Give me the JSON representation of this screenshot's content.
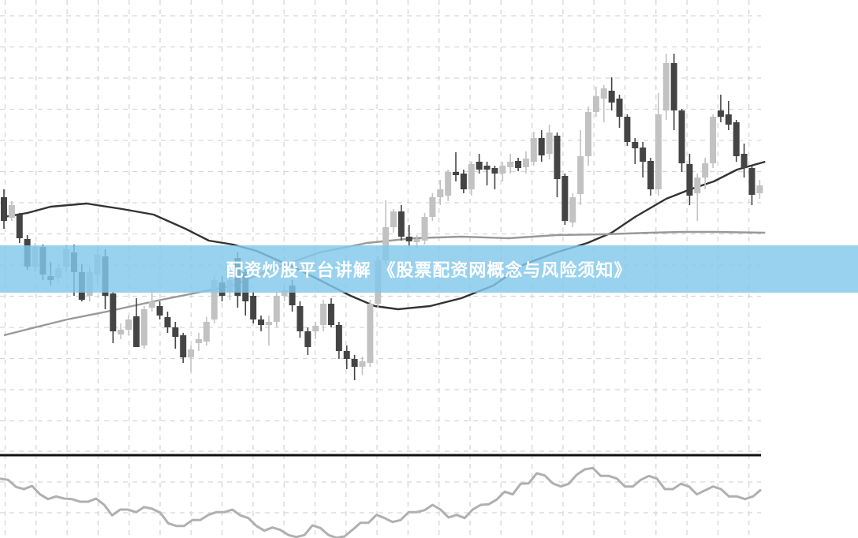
{
  "banner": {
    "title": "配资炒股平台讲解 《股票配资网概念与风险须知》",
    "background": "#82c8eb"
  },
  "colors": {
    "bear": "#444444",
    "bull": "#c2c2c2",
    "ma_fast": "#333333",
    "ma_slow": "#999999",
    "oscillator": "#b0b0b0",
    "grid": "#d6d6d6"
  },
  "chart_data": [
    {
      "type": "candlestick",
      "title": "",
      "grid": true,
      "legend": "none",
      "ohlc_fields": [
        "open",
        "high",
        "low",
        "close"
      ],
      "candles": [
        [
          450,
          460,
          410,
          420
        ],
        [
          424,
          445,
          420,
          440
        ],
        [
          428,
          430,
          392,
          398
        ],
        [
          397,
          402,
          358,
          362
        ],
        [
          362,
          392,
          355,
          387
        ],
        [
          387,
          390,
          345,
          352
        ],
        [
          350,
          368,
          338,
          345
        ],
        [
          348,
          365,
          342,
          360
        ],
        [
          362,
          390,
          355,
          384
        ],
        [
          380,
          390,
          325,
          355
        ],
        [
          355,
          365,
          318,
          320
        ],
        [
          325,
          362,
          318,
          355
        ],
        [
          352,
          385,
          340,
          377
        ],
        [
          375,
          384,
          308,
          325
        ],
        [
          328,
          330,
          265,
          280
        ],
        [
          276,
          290,
          270,
          282
        ],
        [
          282,
          300,
          275,
          295
        ],
        [
          299,
          322,
          260,
          260
        ],
        [
          262,
          312,
          258,
          308
        ],
        [
          310,
          330,
          305,
          318
        ],
        [
          312,
          318,
          295,
          300
        ],
        [
          298,
          305,
          278,
          285
        ],
        [
          285,
          292,
          258,
          273
        ],
        [
          275,
          278,
          240,
          247
        ],
        [
          247,
          262,
          228,
          257
        ],
        [
          265,
          278,
          255,
          270
        ],
        [
          267,
          298,
          262,
          292
        ],
        [
          295,
          350,
          290,
          345
        ],
        [
          342,
          350,
          318,
          325
        ],
        [
          330,
          352,
          320,
          345
        ],
        [
          373,
          380,
          310,
          325
        ],
        [
          355,
          362,
          300,
          318
        ],
        [
          325,
          330,
          290,
          295
        ],
        [
          295,
          300,
          280,
          288
        ],
        [
          288,
          300,
          262,
          292
        ],
        [
          292,
          330,
          285,
          325
        ],
        [
          325,
          340,
          318,
          332
        ],
        [
          338,
          345,
          305,
          313
        ],
        [
          312,
          318,
          272,
          280
        ],
        [
          280,
          285,
          250,
          260
        ],
        [
          280,
          292,
          270,
          287
        ],
        [
          288,
          320,
          280,
          315
        ],
        [
          315,
          322,
          285,
          288
        ],
        [
          288,
          292,
          245,
          255
        ],
        [
          255,
          262,
          232,
          245
        ],
        [
          245,
          250,
          218,
          235
        ],
        [
          235,
          248,
          225,
          242
        ],
        [
          240,
          320,
          235,
          315
        ],
        [
          315,
          375,
          310,
          370
        ],
        [
          370,
          446,
          365,
          412
        ],
        [
          412,
          435,
          405,
          432
        ],
        [
          432,
          440,
          395,
          400
        ],
        [
          400,
          415,
          388,
          394
        ],
        [
          393,
          402,
          385,
          397
        ],
        [
          395,
          430,
          390,
          425
        ],
        [
          425,
          455,
          420,
          450
        ],
        [
          450,
          472,
          440,
          460
        ],
        [
          452,
          485,
          445,
          482
        ],
        [
          482,
          507,
          470,
          478
        ],
        [
          480,
          485,
          455,
          460
        ],
        [
          460,
          495,
          452,
          492
        ],
        [
          495,
          505,
          480,
          485
        ],
        [
          490,
          495,
          465,
          485
        ],
        [
          487,
          490,
          460,
          480
        ],
        [
          480,
          495,
          470,
          490
        ],
        [
          488,
          505,
          480,
          495
        ],
        [
          496,
          500,
          483,
          487
        ],
        [
          488,
          508,
          480,
          499
        ],
        [
          495,
          533,
          490,
          525
        ],
        [
          525,
          535,
          495,
          503
        ],
        [
          505,
          542,
          498,
          532
        ],
        [
          528,
          532,
          450,
          473
        ],
        [
          477,
          480,
          415,
          420
        ],
        [
          418,
          455,
          412,
          450
        ],
        [
          454,
          535,
          440,
          502
        ],
        [
          502,
          565,
          490,
          558
        ],
        [
          558,
          590,
          552,
          578
        ],
        [
          575,
          592,
          545,
          588
        ],
        [
          585,
          602,
          560,
          570
        ],
        [
          575,
          580,
          538,
          552
        ],
        [
          552,
          555,
          515,
          520
        ],
        [
          520,
          525,
          492,
          512
        ],
        [
          513,
          520,
          475,
          495
        ],
        [
          496,
          500,
          452,
          460
        ],
        [
          460,
          582,
          452,
          555
        ],
        [
          560,
          632,
          548,
          620
        ],
        [
          620,
          632,
          535,
          560
        ],
        [
          560,
          562,
          482,
          493
        ],
        [
          492,
          505,
          440,
          452
        ],
        [
          455,
          480,
          420,
          475
        ],
        [
          475,
          500,
          460,
          493
        ],
        [
          493,
          555,
          487,
          552
        ],
        [
          560,
          580,
          545,
          552
        ],
        [
          555,
          572,
          535,
          542
        ],
        [
          545,
          548,
          495,
          502
        ],
        [
          505,
          518,
          475,
          487
        ],
        [
          487,
          490,
          440,
          453
        ],
        [
          455,
          472,
          448,
          465
        ]
      ],
      "moving_averages": [
        {
          "style": "dark",
          "values": [
            [
              0,
              425
            ],
            [
              3,
              430
            ],
            [
              6,
              438
            ],
            [
              10.6,
              442
            ],
            [
              15.2,
              435
            ],
            [
              19.2,
              428
            ],
            [
              23.3,
              410
            ],
            [
              26.3,
              395
            ],
            [
              29.4,
              390
            ],
            [
              32.4,
              382
            ],
            [
              37.5,
              360
            ],
            [
              41.5,
              340
            ],
            [
              44.5,
              325
            ],
            [
              47.6,
              312
            ],
            [
              50.6,
              308
            ],
            [
              54.7,
              312
            ],
            [
              58.7,
              322
            ],
            [
              62.8,
              338
            ],
            [
              66.8,
              365
            ],
            [
              70.9,
              380
            ],
            [
              74.9,
              392
            ],
            [
              78,
              405
            ],
            [
              81,
              425
            ],
            [
              85,
              448
            ],
            [
              88.1,
              460
            ],
            [
              91.1,
              470
            ],
            [
              94.1,
              485
            ],
            [
              97.7,
              495
            ]
          ]
        },
        {
          "style": "light",
          "values": [
            [
              0,
              275
            ],
            [
              4,
              285
            ],
            [
              8.1,
              295
            ],
            [
              13.2,
              305
            ],
            [
              20.2,
              320
            ],
            [
              25.3,
              330
            ],
            [
              29.4,
              338
            ],
            [
              33.4,
              355
            ],
            [
              40.5,
              380
            ],
            [
              46.6,
              392
            ],
            [
              52.6,
              398
            ],
            [
              58.7,
              400
            ],
            [
              64.8,
              398
            ],
            [
              70.9,
              402
            ],
            [
              76.9,
              403
            ],
            [
              83,
              405
            ],
            [
              87.1,
              406
            ],
            [
              91.1,
              406
            ],
            [
              97.7,
              405
            ]
          ]
        }
      ]
    },
    {
      "type": "line",
      "title": "",
      "grid": true,
      "baseline": 400,
      "values": [
        260,
        255,
        228,
        220,
        232,
        200,
        182,
        192,
        184,
        182,
        172,
        172,
        184,
        160,
        120,
        142,
        142,
        132,
        152,
        145,
        130,
        90,
        80,
        80,
        102,
        102,
        122,
        132,
        132,
        142,
        120,
        110,
        80,
        62,
        74,
        65,
        45,
        38,
        45,
        82,
        72,
        45,
        35,
        40,
        65,
        92,
        92,
        122,
        110,
        95,
        102,
        132,
        132,
        140,
        160,
        142,
        112,
        122,
        110,
        142,
        160,
        162,
        180,
        210,
        200,
        240,
        242,
        280,
        272,
        242,
        230,
        240,
        275,
        295,
        300,
        270,
        270,
        260,
        230,
        230,
        255,
        270,
        260,
        220,
        220,
        240,
        230,
        200,
        215,
        230,
        220,
        192,
        192,
        182,
        192,
        218
      ]
    }
  ]
}
